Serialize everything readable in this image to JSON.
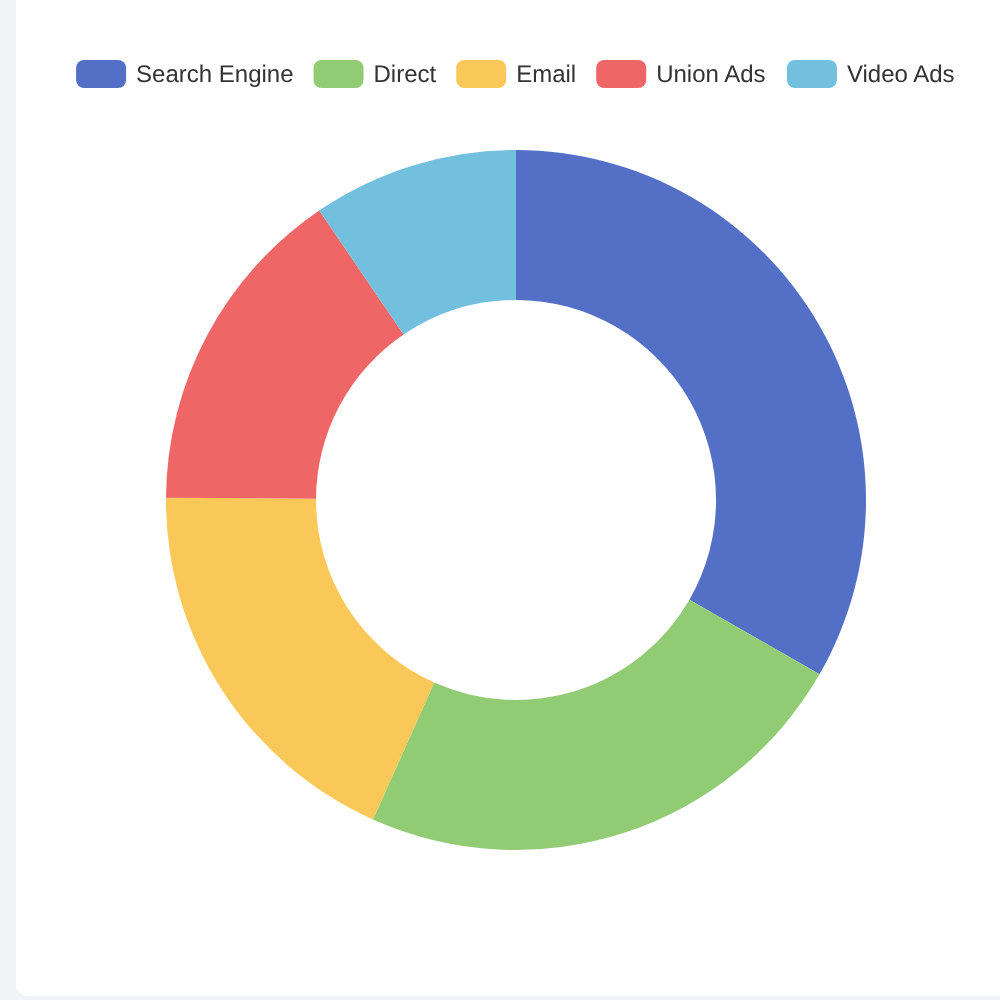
{
  "chart_data": {
    "type": "donut",
    "categories": [
      "Search Engine",
      "Direct",
      "Email",
      "Union Ads",
      "Video Ads"
    ],
    "values": [
      33.3,
      23.4,
      18.4,
      15.4,
      9.5
    ],
    "colors": [
      "#5470c6",
      "#91cc75",
      "#fac858",
      "#ee6666",
      "#73c0de"
    ],
    "legend": "top"
  }
}
